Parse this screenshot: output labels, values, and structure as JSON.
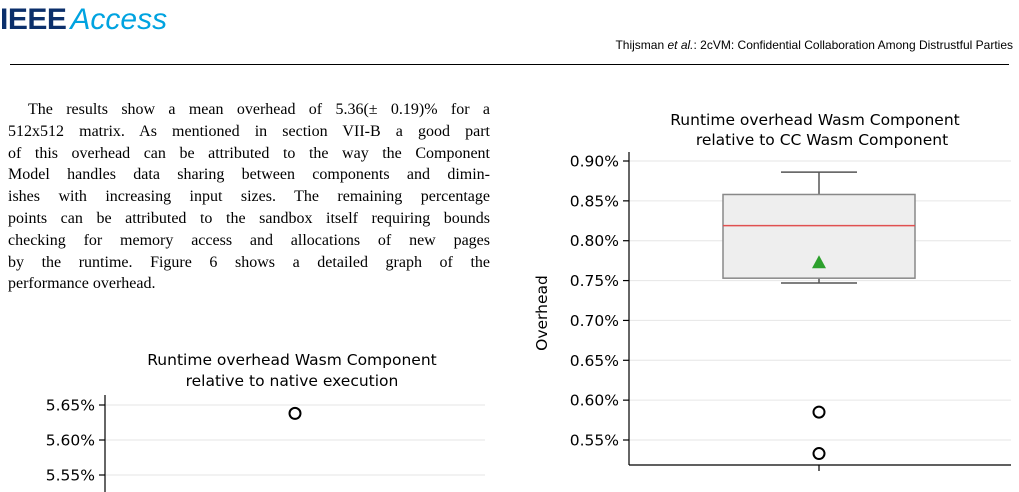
{
  "header": {
    "logo_ieee": "IEEE",
    "logo_access": "Access",
    "authors": "Thijsman",
    "et_al": "et al.",
    "title": ": 2cVM: Confidential Collaboration Among Distrustful Parties"
  },
  "body_lines": [
    "The results show a mean overhead of 5.36(± 0.19)% for a",
    "512x512 matrix. As mentioned in section VII-B a good part",
    "of this overhead can be attributed to the way the Component",
    "Model handles data sharing between components and dimin-",
    "ishes with increasing input sizes. The remaining percentage",
    "points can be attributed to the sandbox itself requiring bounds",
    "checking for memory access and allocations of new pages",
    "by the runtime. Figure 6 shows a detailed graph of the",
    "performance overhead."
  ],
  "chart_data": [
    {
      "type": "box",
      "title": [
        "Runtime overhead Wasm Component",
        "relative to native execution"
      ],
      "ylabel": "",
      "yticks": [
        "5.65%",
        "5.60%",
        "5.55%"
      ],
      "ylim": [
        5.535,
        5.67
      ],
      "grid": true,
      "outliers": [
        5.638
      ],
      "note": "partially visible (cropped at bottom)"
    },
    {
      "type": "box",
      "title": [
        "Runtime overhead Wasm Component",
        "relative to CC Wasm Component"
      ],
      "ylabel": "Overhead",
      "yticks": [
        "0.90%",
        "0.85%",
        "0.80%",
        "0.75%",
        "0.70%",
        "0.65%",
        "0.60%",
        "0.55%"
      ],
      "ylim": [
        0.522,
        0.9
      ],
      "grid": true,
      "box": {
        "whisker_low": 0.747,
        "q1": 0.753,
        "median": 0.819,
        "q3": 0.858,
        "whisker_high": 0.886,
        "mean": 0.773
      },
      "outliers": [
        0.585,
        0.533
      ],
      "colors": {
        "median": "#e05050",
        "mean": "#2ca02c",
        "box_fill": "#eeeeee",
        "box_edge": "#888888"
      }
    }
  ]
}
